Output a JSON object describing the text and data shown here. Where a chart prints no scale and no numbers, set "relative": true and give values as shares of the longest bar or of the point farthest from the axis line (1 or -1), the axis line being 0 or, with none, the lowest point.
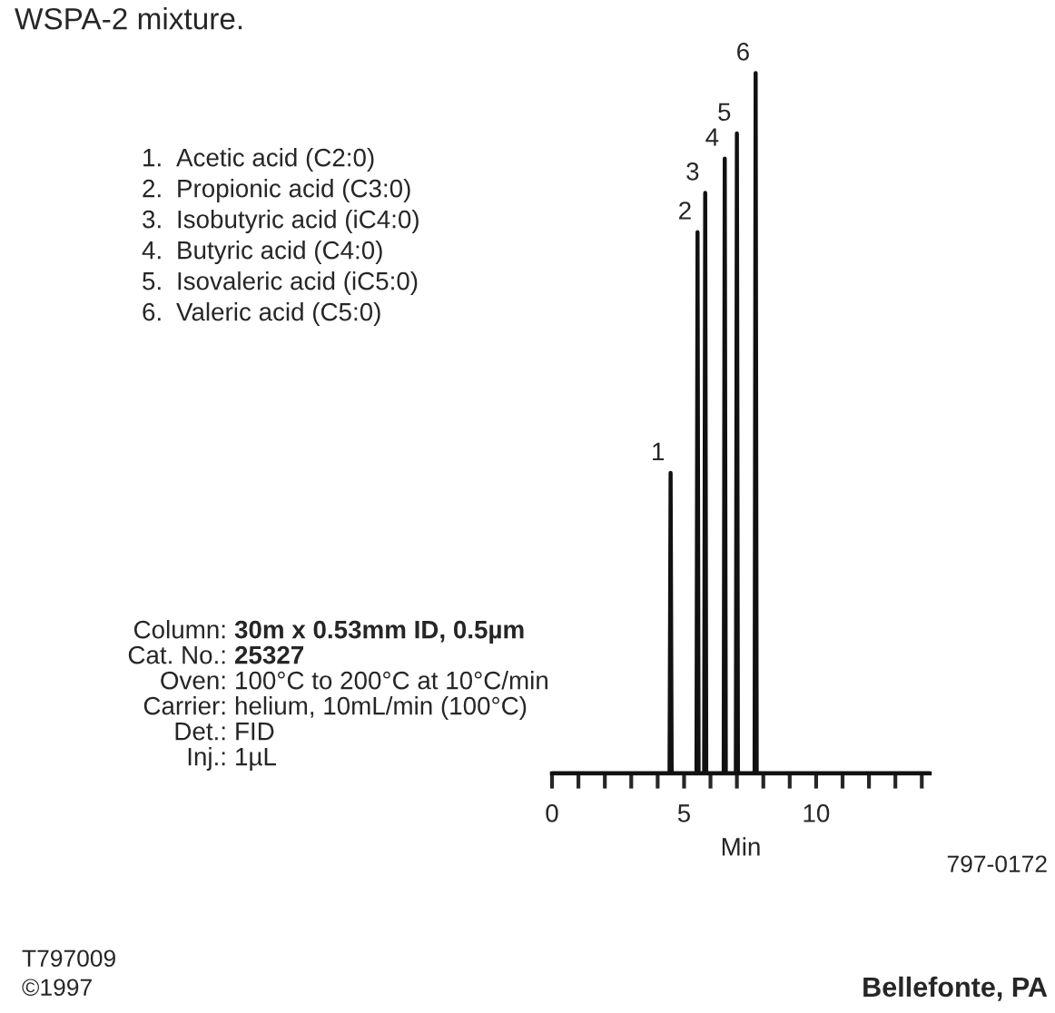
{
  "chart_data": {
    "type": "line",
    "title": "WSPA-2 mixture.",
    "xlabel": "Min",
    "relative": true,
    "x": [
      0,
      4.45,
      4.49,
      4.53,
      5.47,
      5.51,
      5.55,
      5.76,
      5.8,
      5.84,
      6.5,
      6.54,
      6.58,
      6.96,
      7.0,
      7.04,
      7.67,
      7.71,
      7.75,
      14.3
    ],
    "series": [
      {
        "color": "#111111",
        "values": [
          0,
          0,
          0.429,
          0,
          0,
          0.773,
          0,
          0,
          0.829,
          0,
          0,
          0.878,
          0,
          0,
          0.914,
          0,
          0,
          1,
          0,
          0
        ]
      }
    ],
    "xlim": [
      0,
      14.3
    ],
    "xticks": [
      0,
      {
        "value": 1,
        "label": null
      },
      {
        "value": 2,
        "label": null
      },
      {
        "value": 3,
        "label": null
      },
      {
        "value": 4,
        "label": null
      },
      5,
      {
        "value": 6,
        "label": null
      },
      {
        "value": 7,
        "label": null
      },
      {
        "value": 8,
        "label": null
      },
      {
        "value": 9,
        "label": null
      },
      10,
      {
        "value": 11,
        "label": null
      },
      {
        "value": 12,
        "label": null
      },
      {
        "value": 13,
        "label": null
      },
      {
        "value": 14,
        "label": null
      }
    ],
    "grid": false,
    "legend": false,
    "marker": "none",
    "line_style": "solid",
    "tick_labels": "x",
    "annotations": [
      {
        "text": "1",
        "x": 4.49,
        "y": 0.429
      },
      {
        "text": "2",
        "x": 5.51,
        "y": 0.773
      },
      {
        "text": "3",
        "x": 5.8,
        "y": 0.829
      },
      {
        "text": "4",
        "x": 6.54,
        "y": 0.878
      },
      {
        "text": "5",
        "x": 7.0,
        "y": 0.914
      },
      {
        "text": "6",
        "x": 7.71,
        "y": 1
      },
      "1.\tAcetic acid (C2:0)",
      "2.\tPropionic acid (C3:0)",
      "3.\tIsobutyric acid (iC4:0)",
      "4.\tButyric acid (C4:0)",
      "5.\tIsovaleric acid (iC5:0)",
      "6.\tValeric acid (C5:0)",
      "Column:\t30m x 0.53mm ID, 0.5µm",
      "Cat. No.:\t25327",
      "Oven:\t100°C to 200°C at 10°C/min",
      "Carrier:\thelium, 10mL/min (100°C)",
      "Det.:\tFID",
      "Inj.:\t1µL",
      "797-0172",
      "T797009",
      "©1997",
      "Bellefonte, PA"
    ]
  }
}
